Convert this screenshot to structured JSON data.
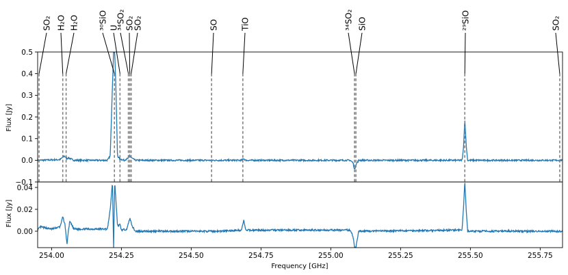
{
  "chart_data": [
    {
      "type": "line",
      "xlabel": "",
      "ylabel": "Flux [Jy]",
      "xlim": [
        253.95,
        255.83
      ],
      "ylim": [
        -0.1,
        0.5
      ],
      "yticks": [
        "-0.1",
        "0.0",
        "0.1",
        "0.2",
        "0.3",
        "0.4",
        "0.5"
      ],
      "series_color": "#1f77b4",
      "marker_color": "#808080",
      "spectrum_points": [
        [
          253.95,
          0.0
        ],
        [
          254.03,
          0.003
        ],
        [
          254.045,
          0.02
        ],
        [
          254.055,
          0.008
        ],
        [
          254.06,
          0.012
        ],
        [
          254.08,
          0.0
        ],
        [
          254.2,
          0.0
        ],
        [
          254.21,
          0.02
        ],
        [
          254.218,
          0.35
        ],
        [
          254.222,
          0.5
        ],
        [
          254.226,
          0.5
        ],
        [
          254.23,
          0.35
        ],
        [
          254.236,
          0.02
        ],
        [
          254.245,
          0.006
        ],
        [
          254.26,
          0.0
        ],
        [
          254.275,
          0.01
        ],
        [
          254.28,
          0.025
        ],
        [
          254.285,
          0.012
        ],
        [
          254.3,
          0.0
        ],
        [
          254.6,
          0.0
        ],
        [
          254.68,
          0.0
        ],
        [
          254.688,
          0.008
        ],
        [
          254.695,
          0.0
        ],
        [
          255.07,
          0.0
        ],
        [
          255.08,
          -0.012
        ],
        [
          255.085,
          -0.045
        ],
        [
          255.09,
          -0.02
        ],
        [
          255.1,
          0.0
        ],
        [
          255.47,
          0.0
        ],
        [
          255.475,
          0.05
        ],
        [
          255.48,
          0.19
        ],
        [
          255.485,
          0.07
        ],
        [
          255.49,
          0.0
        ],
        [
          255.83,
          0.0
        ]
      ],
      "lines": [
        {
          "freq": 253.955,
          "label": "SO₂"
        },
        {
          "freq": 254.04,
          "label": "H₂O"
        },
        {
          "freq": 254.052,
          "label": "H₂O"
        },
        {
          "freq": 254.225,
          "label": "³⁰SiO"
        },
        {
          "freq": 254.245,
          "label": "U"
        },
        {
          "freq": 254.275,
          "label": "³⁴SO₂"
        },
        {
          "freq": 254.28,
          "label": "SO₂"
        },
        {
          "freq": 254.285,
          "label": "SO₂"
        },
        {
          "freq": 254.573,
          "label": "SO"
        },
        {
          "freq": 254.685,
          "label": "TiO"
        },
        {
          "freq": 255.085,
          "label": "³⁴SO₂"
        },
        {
          "freq": 255.09,
          "label": "SiO"
        },
        {
          "freq": 255.48,
          "label": "²⁹SiO"
        },
        {
          "freq": 255.82,
          "label": "SO₂"
        }
      ]
    },
    {
      "type": "line",
      "xlabel": "Frequency [GHz]",
      "ylabel": "Flux [Jy]",
      "xlim": [
        253.95,
        255.83
      ],
      "ylim": [
        -0.015,
        0.045
      ],
      "yticks": [
        "0.00",
        "0.02",
        "0.04"
      ],
      "xticks": [
        "254.00",
        "254.25",
        "254.50",
        "254.75",
        "255.00",
        "255.25",
        "255.50",
        "255.75"
      ],
      "series_color": "#1f77b4",
      "spectrum_points": [
        [
          253.95,
          0.001
        ],
        [
          253.96,
          0.004
        ],
        [
          254.0,
          0.002
        ],
        [
          254.03,
          0.004
        ],
        [
          254.04,
          0.013
        ],
        [
          254.048,
          0.006
        ],
        [
          254.055,
          -0.012
        ],
        [
          254.06,
          0.0
        ],
        [
          254.065,
          0.009
        ],
        [
          254.08,
          0.002
        ],
        [
          254.2,
          0.002
        ],
        [
          254.21,
          0.02
        ],
        [
          254.218,
          0.045
        ],
        [
          254.222,
          -0.015
        ],
        [
          254.226,
          0.045
        ],
        [
          254.23,
          0.03
        ],
        [
          254.236,
          0.005
        ],
        [
          254.245,
          0.006
        ],
        [
          254.25,
          0.001
        ],
        [
          254.27,
          0.002
        ],
        [
          254.28,
          0.012
        ],
        [
          254.29,
          0.004
        ],
        [
          254.3,
          0.0
        ],
        [
          254.6,
          0.0
        ],
        [
          254.68,
          0.001
        ],
        [
          254.688,
          0.01
        ],
        [
          254.695,
          0.001
        ],
        [
          255.07,
          0.001
        ],
        [
          255.08,
          -0.005
        ],
        [
          255.085,
          -0.015
        ],
        [
          255.09,
          -0.015
        ],
        [
          255.1,
          0.0
        ],
        [
          255.47,
          0.001
        ],
        [
          255.475,
          0.02
        ],
        [
          255.48,
          0.045
        ],
        [
          255.485,
          0.02
        ],
        [
          255.49,
          0.0
        ],
        [
          255.83,
          0.0
        ]
      ]
    }
  ]
}
